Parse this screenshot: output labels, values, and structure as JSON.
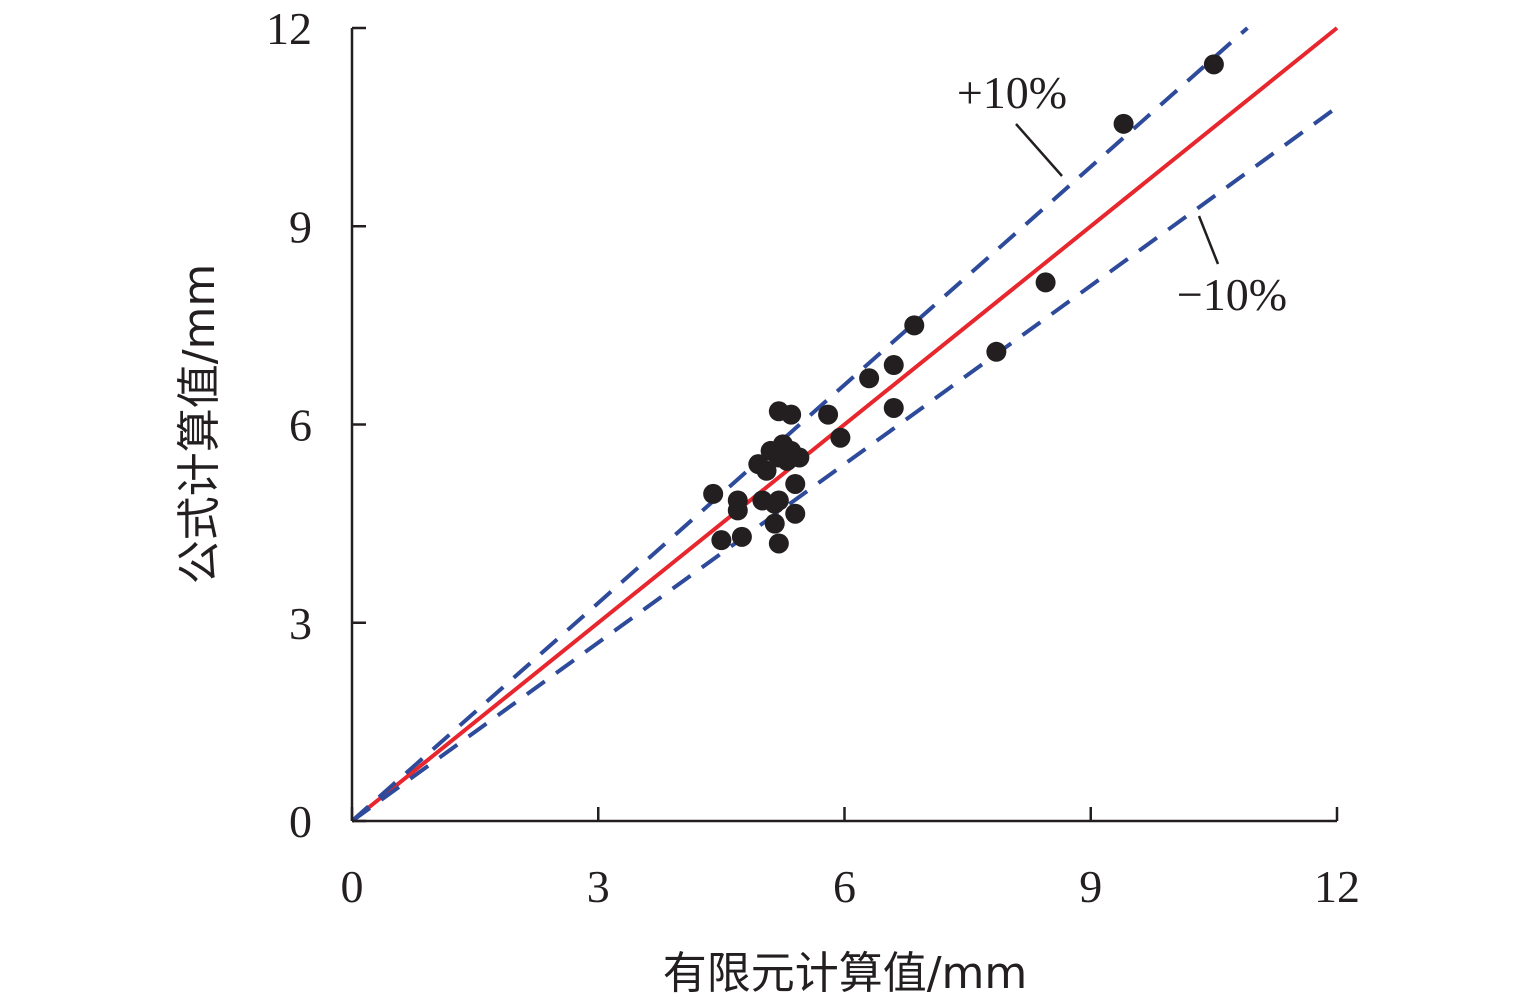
{
  "chart_data": {
    "type": "scatter",
    "xlabel": "有限元计算值/mm",
    "ylabel": "公式计算值/mm",
    "xlim": [
      0,
      12
    ],
    "ylim": [
      0,
      12
    ],
    "xticks": [
      "0",
      "3",
      "6",
      "9",
      "12"
    ],
    "yticks": [
      "0",
      "3",
      "6",
      "9",
      "12"
    ],
    "grid": false,
    "reference_lines": [
      {
        "slope": 1.0,
        "style": "solid",
        "color": "#e8262d"
      },
      {
        "slope": 1.1,
        "style": "dashed",
        "color": "#2e4a9a",
        "label": "+10%"
      },
      {
        "slope": 0.9,
        "style": "dashed",
        "color": "#2e4a9a",
        "label": "−10%"
      }
    ],
    "annotations": {
      "plus": "+10%",
      "minus": "−10%"
    },
    "marker_color": "#231f20",
    "points": [
      {
        "x": 4.4,
        "y": 4.95
      },
      {
        "x": 4.5,
        "y": 4.25
      },
      {
        "x": 4.7,
        "y": 4.85
      },
      {
        "x": 4.7,
        "y": 4.7
      },
      {
        "x": 4.75,
        "y": 4.3
      },
      {
        "x": 4.95,
        "y": 5.4
      },
      {
        "x": 5.0,
        "y": 4.85
      },
      {
        "x": 5.05,
        "y": 5.3
      },
      {
        "x": 5.1,
        "y": 5.6
      },
      {
        "x": 5.15,
        "y": 4.5
      },
      {
        "x": 5.15,
        "y": 4.8
      },
      {
        "x": 5.2,
        "y": 6.2
      },
      {
        "x": 5.2,
        "y": 5.5
      },
      {
        "x": 5.2,
        "y": 4.85
      },
      {
        "x": 5.2,
        "y": 4.2
      },
      {
        "x": 5.25,
        "y": 5.7
      },
      {
        "x": 5.3,
        "y": 5.45
      },
      {
        "x": 5.35,
        "y": 6.15
      },
      {
        "x": 5.35,
        "y": 5.6
      },
      {
        "x": 5.4,
        "y": 5.1
      },
      {
        "x": 5.4,
        "y": 4.65
      },
      {
        "x": 5.45,
        "y": 5.5
      },
      {
        "x": 5.8,
        "y": 6.15
      },
      {
        "x": 5.95,
        "y": 5.8
      },
      {
        "x": 6.3,
        "y": 6.7
      },
      {
        "x": 6.6,
        "y": 6.9
      },
      {
        "x": 6.6,
        "y": 6.25
      },
      {
        "x": 6.85,
        "y": 7.5
      },
      {
        "x": 7.85,
        "y": 7.1
      },
      {
        "x": 8.45,
        "y": 8.15
      },
      {
        "x": 9.4,
        "y": 10.55
      },
      {
        "x": 10.5,
        "y": 11.45
      }
    ]
  }
}
